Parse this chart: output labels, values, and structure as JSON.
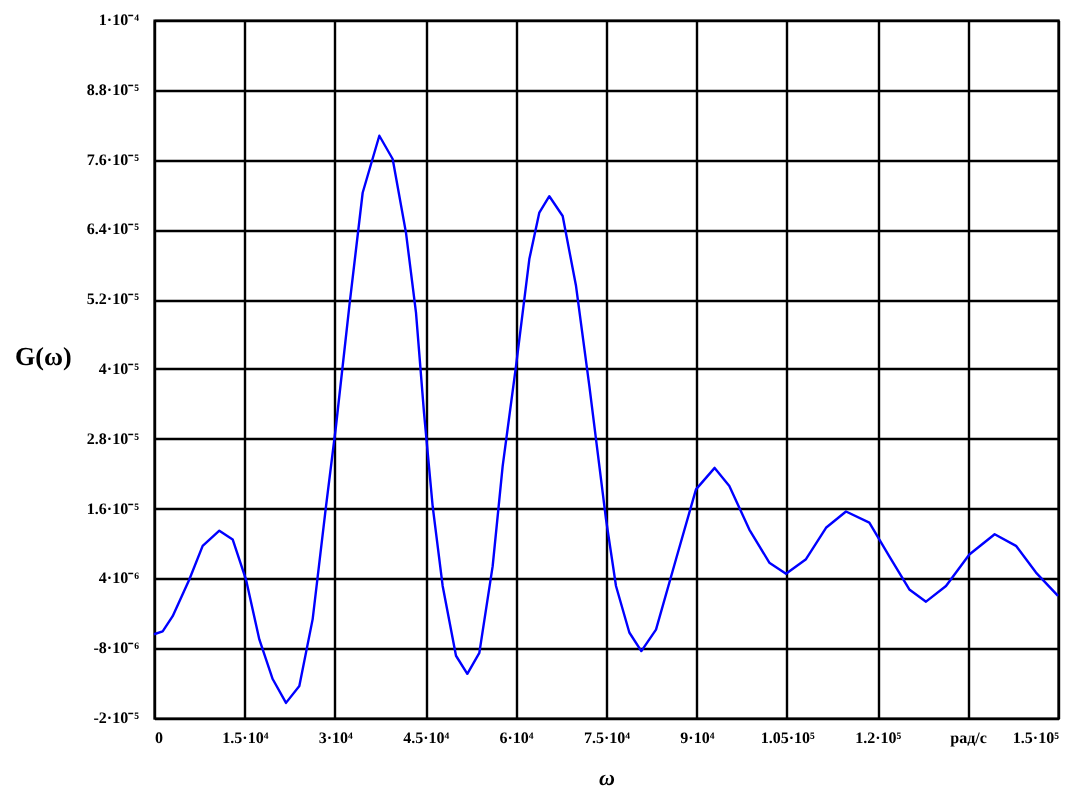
{
  "chart_data": {
    "type": "line",
    "xlabel": "ω",
    "ylabel": "G(ω)",
    "x": [
      0,
      1438,
      3097,
      5863,
      8075,
      10841,
      13053,
      15266,
      17478,
      19690,
      21903,
      24115,
      26328,
      28540,
      30199,
      32412,
      34624,
      37389,
      39602,
      41814,
      43473,
      44801,
      46239,
      47898,
      50111,
      51991,
      53983,
      56195,
      57854,
      60067,
      62279,
      63938,
      65597,
      67810,
      70022,
      72235,
      74999,
      76659,
      78871,
      80862,
      83296,
      86614,
      89933,
      93030,
      95464,
      98782,
      102101,
      104867,
      108186,
      111504,
      114823,
      118694,
      122013,
      125331,
      128098,
      131417,
      135288,
      139492,
      143030,
      146349,
      150000
    ],
    "series": [
      {
        "color": "#0000ff",
        "values": [
          -5.6e-06,
          -5.1e-06,
          -2.5e-06,
          3.8e-06,
          9.6e-06,
          1.22e-05,
          1.07e-05,
          3.8e-06,
          -6.5e-06,
          -1.33e-05,
          -1.74e-05,
          -1.45e-05,
          -3e-06,
          1.64e-05,
          3.02e-05,
          5.08e-05,
          7.03e-05,
          8.01e-05,
          7.61e-05,
          6.34e-05,
          4.97e-05,
          3.25e-05,
          1.64e-05,
          2.7e-06,
          -9.3e-06,
          -1.24e-05,
          -8.8e-06,
          6.1e-06,
          2.33e-05,
          4.05e-05,
          5.89e-05,
          6.69e-05,
          6.97e-05,
          6.63e-05,
          5.43e-05,
          3.71e-05,
          1.42e-05,
          2.7e-06,
          -5.3e-06,
          -8.5e-06,
          -4.8e-06,
          7.3e-06,
          1.93e-05,
          2.3e-05,
          1.99e-05,
          1.24e-05,
          6.7e-06,
          4.8e-06,
          7.3e-06,
          1.27e-05,
          1.55e-05,
          1.36e-05,
          7.8e-06,
          2.1e-06,
          0.0,
          2.7e-06,
          8.1e-06,
          1.16e-05,
          9.6e-06,
          5e-06,
          1e-06
        ]
      }
    ],
    "xlim": [
      0,
      150000
    ],
    "xticks": [
      0,
      {
        "value": 15000,
        "label": "1.5·10⁴"
      },
      {
        "value": 30000,
        "label": "3·10⁴"
      },
      {
        "value": 45000,
        "label": "4.5·10⁴"
      },
      {
        "value": 60000,
        "label": "6·10⁴"
      },
      {
        "value": 75000,
        "label": "7.5·10⁴"
      },
      {
        "value": 90000,
        "label": "9·10⁴"
      },
      {
        "value": 105000,
        "label": "1.05·10⁵"
      },
      {
        "value": 120000,
        "label": "1.2·10⁵"
      },
      {
        "value": 135000,
        "label": "рад/с"
      },
      {
        "value": 150000,
        "label": "1.5·10⁵"
      }
    ],
    "ylim": [
      -2e-05,
      0.0001
    ],
    "yticks": [
      {
        "value": -2e-05,
        "label": "-2·10⁻⁵"
      },
      {
        "value": -8e-06,
        "label": "-8·10⁻⁶"
      },
      {
        "value": 4e-06,
        "label": "4·10⁻⁶"
      },
      {
        "value": 1.6e-05,
        "label": "1.6·10⁻⁵"
      },
      {
        "value": 2.8e-05,
        "label": "2.8·10⁻⁵"
      },
      {
        "value": 4e-05,
        "label": "4·10⁻⁵"
      },
      {
        "value": 5.2e-05,
        "label": "5.2·10⁻⁵"
      },
      {
        "value": 6.4e-05,
        "label": "6.4·10⁻⁵"
      },
      {
        "value": 7.6e-05,
        "label": "7.6·10⁻⁵"
      },
      {
        "value": 8.8e-05,
        "label": "8.8·10⁻⁵"
      },
      {
        "value": 0.0001,
        "label": "1·10⁻⁴"
      }
    ],
    "grid": true,
    "marker": "none",
    "line_style": "solid"
  }
}
